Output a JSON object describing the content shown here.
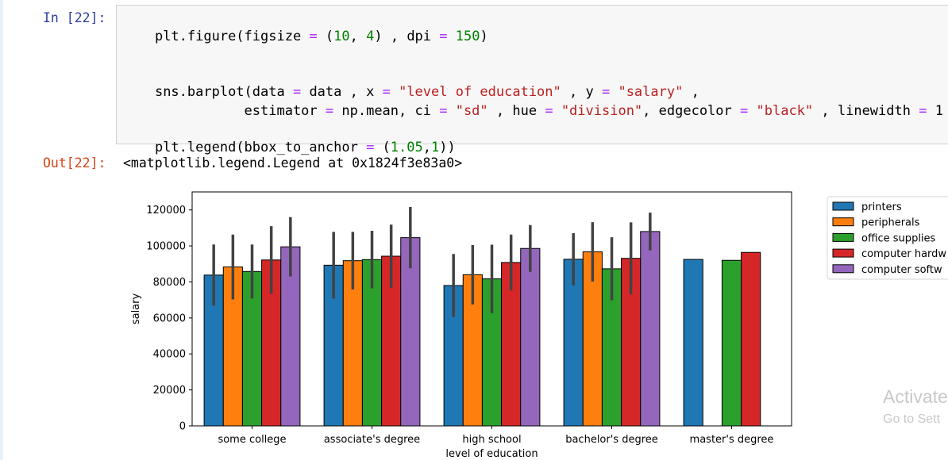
{
  "input_cell": {
    "prompt": "In [22]:",
    "line1": [
      "plt.figure(figsize ",
      "=",
      " (",
      "10",
      ", ",
      "4",
      ") , dpi ",
      "=",
      " ",
      "150",
      ")"
    ],
    "line2": [
      "sns.barplot(data ",
      "=",
      " data , x ",
      "=",
      " ",
      "\"level of education\"",
      " , y ",
      "=",
      " ",
      "\"salary\"",
      " ,"
    ],
    "line3": [
      "           estimator ",
      "=",
      " np.mean, ci ",
      "=",
      " ",
      "\"sd\"",
      " , hue ",
      "=",
      " ",
      "\"division\"",
      ", edgecolor ",
      "=",
      " ",
      "\"black\"",
      " , linewidth ",
      "=",
      " 1"
    ],
    "line4": [
      "plt.legend(bbox_to_anchor ",
      "=",
      " (",
      "1.05",
      ",",
      "1",
      "))"
    ]
  },
  "output_cell": {
    "prompt": "Out[22]:",
    "text": "<matplotlib.legend.Legend at 0x1824f3e83a0>"
  },
  "chart_data": {
    "type": "bar",
    "categories": [
      "some college",
      "associate's degree",
      "high school",
      "bachelor's degree",
      "master's degree"
    ],
    "xlabel": "level of education",
    "ylabel": "salary",
    "ylim": [
      0,
      130000
    ],
    "yticks": [
      0,
      20000,
      40000,
      60000,
      80000,
      100000,
      120000
    ],
    "legend_placement": "outside-right-top",
    "series": [
      {
        "name": "printers",
        "color": "#1f77b4",
        "values": [
          83800,
          89300,
          78000,
          92600,
          92500
        ],
        "errors": [
          17000,
          18500,
          17500,
          14500,
          null
        ]
      },
      {
        "name": "peripherals",
        "color": "#ff7f0e",
        "values": [
          88300,
          91800,
          84000,
          96700,
          null
        ],
        "errors": [
          18000,
          16000,
          16500,
          16500,
          null
        ]
      },
      {
        "name": "office supplies",
        "color": "#2ca02c",
        "values": [
          85800,
          92400,
          81700,
          87300,
          92000
        ],
        "errors": [
          15000,
          16000,
          19000,
          17500,
          null
        ]
      },
      {
        "name": "computer hardw",
        "color": "#d62728",
        "values": [
          92200,
          94300,
          90800,
          93100,
          96400
        ],
        "errors": [
          18800,
          17500,
          15500,
          20000,
          null
        ]
      },
      {
        "name": "computer softw",
        "color": "#9467bd",
        "values": [
          99500,
          104600,
          98600,
          108000,
          null
        ],
        "errors": [
          16500,
          17000,
          13000,
          10500,
          null
        ]
      }
    ]
  },
  "watermark": {
    "line1": "Activate",
    "line2": "Go to Sett"
  }
}
